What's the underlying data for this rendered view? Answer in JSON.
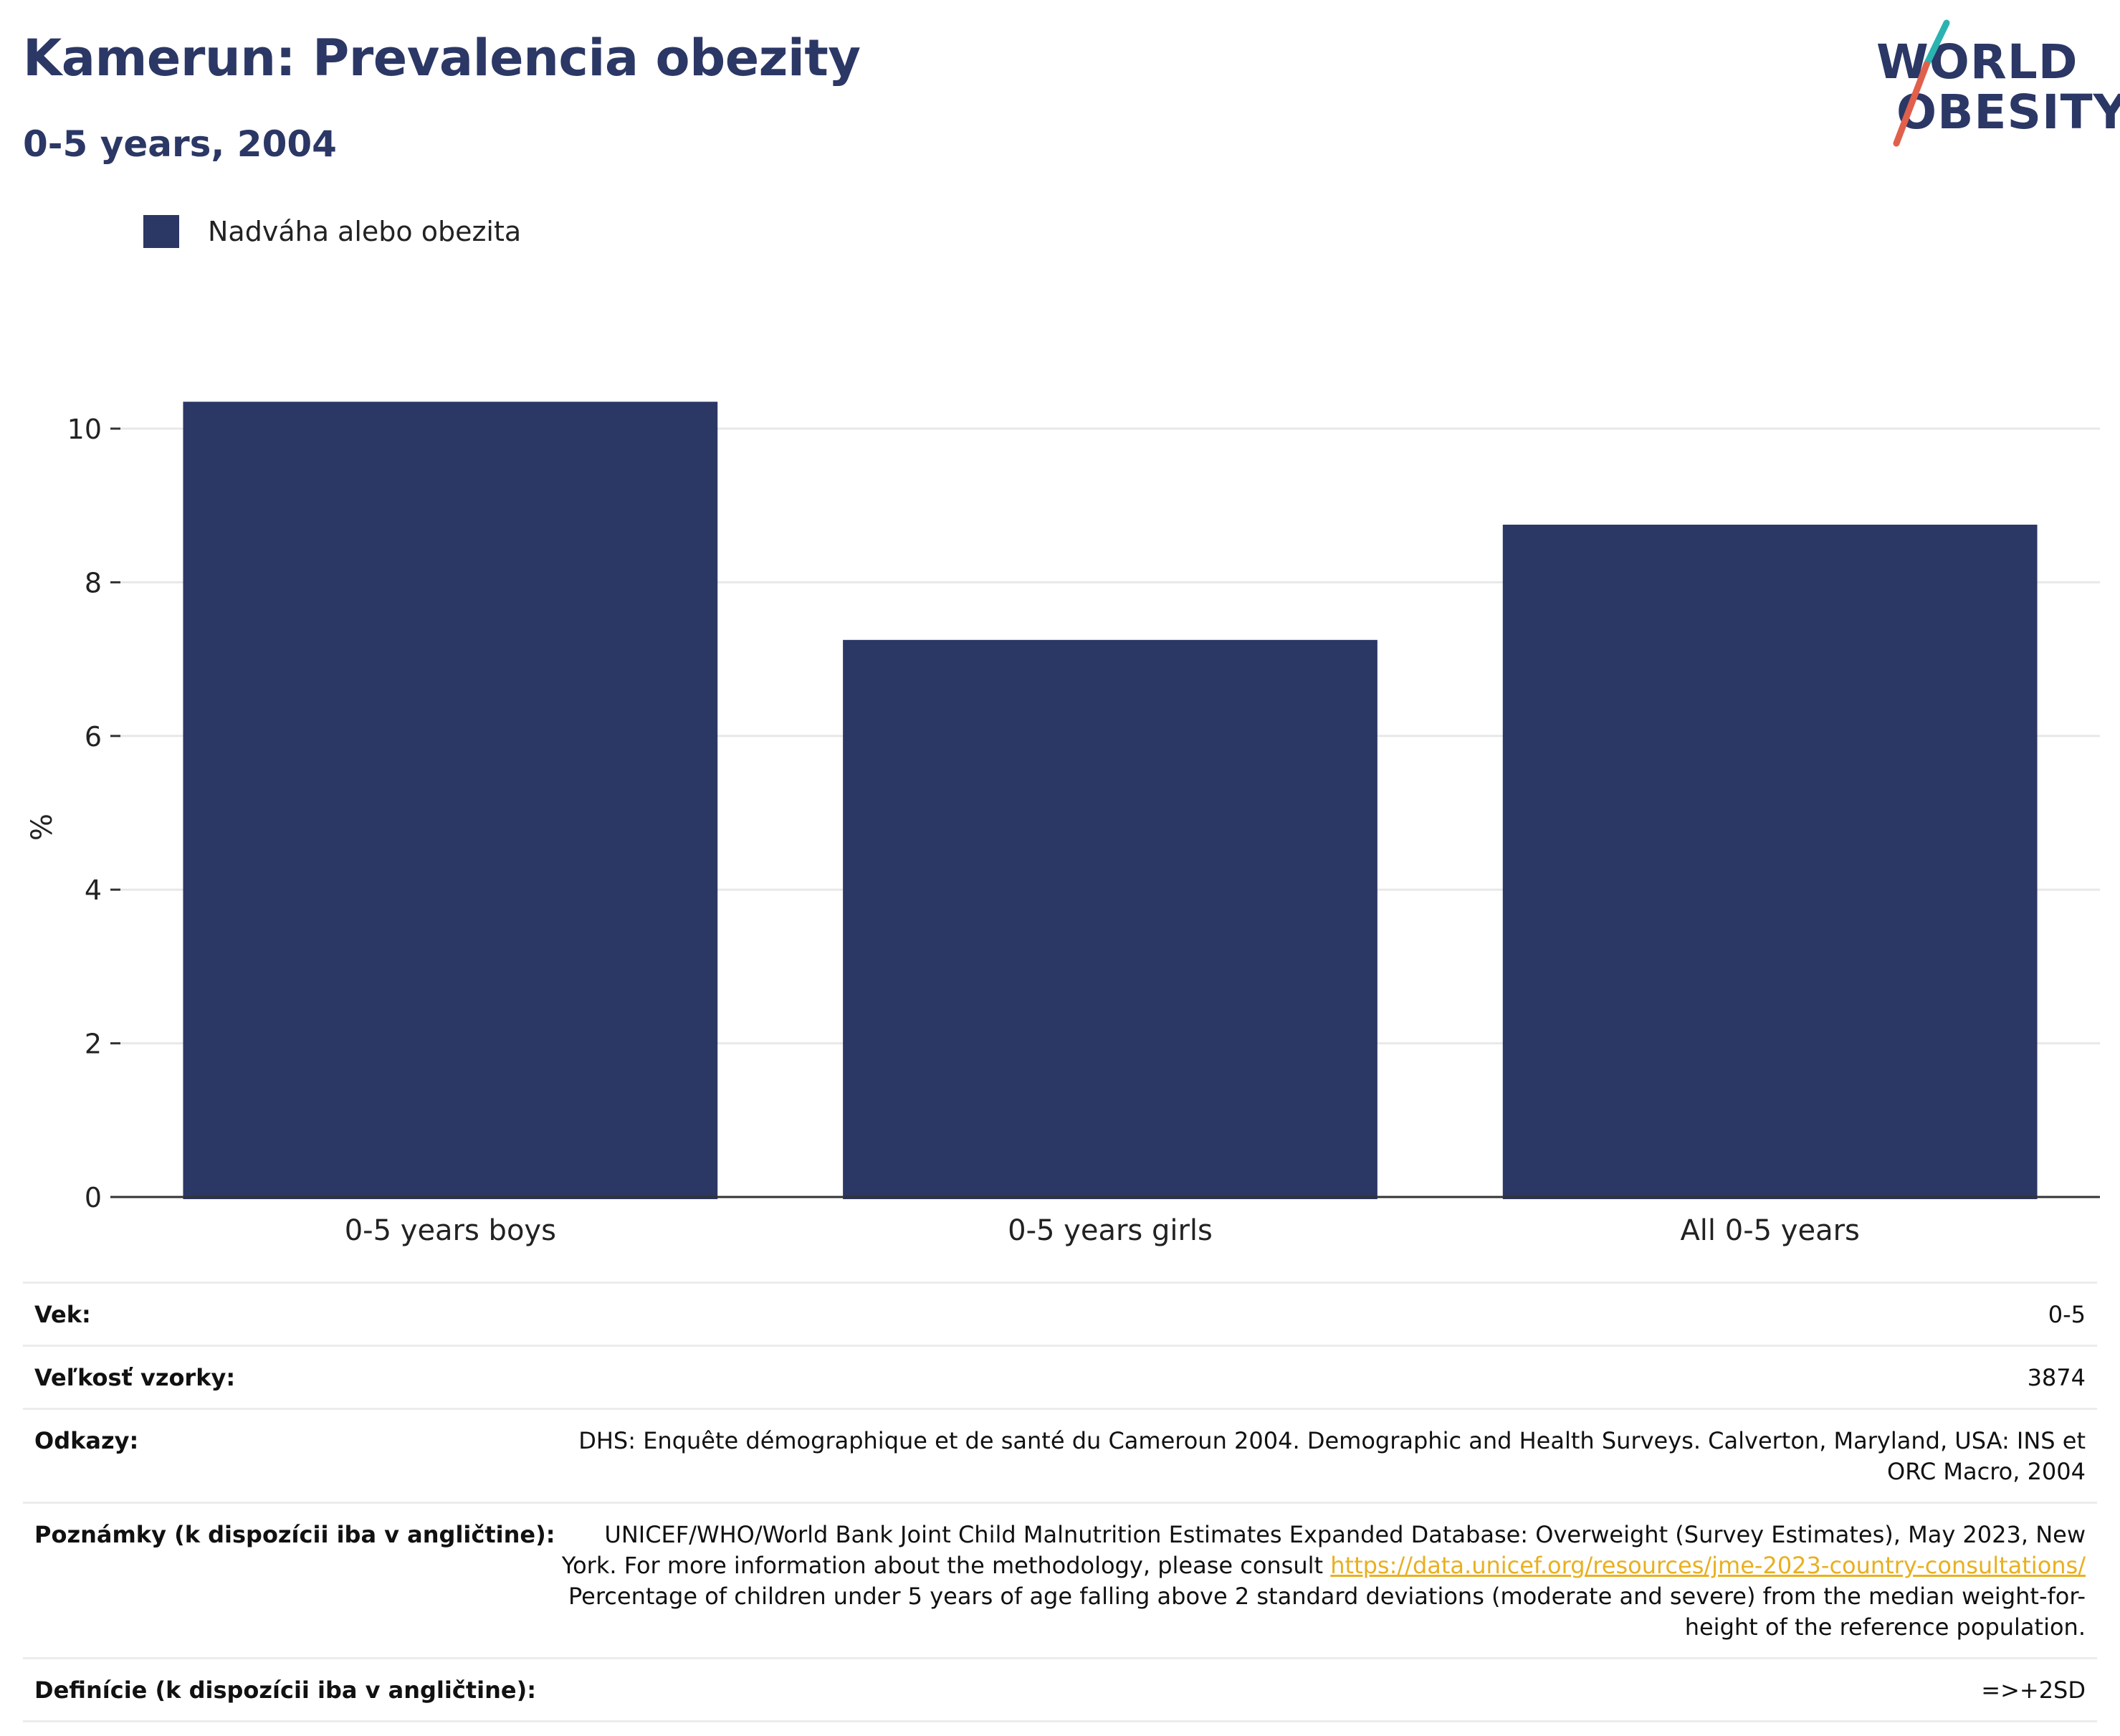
{
  "title": "Kamerun: Prevalencia obezity",
  "subtitle": "0-5 years, 2004",
  "logo": {
    "line1": "WORLD",
    "line2": "OBESITY",
    "accent_teal": "#2bb3b1",
    "accent_red": "#e0604c"
  },
  "colors": {
    "bar": "#2b3765",
    "grid": "#e8e8e8",
    "axis": "#333333",
    "link": "#e8b020"
  },
  "chart_data": {
    "type": "bar",
    "categories": [
      "0-5 years boys",
      "0-5 years girls",
      "All 0-5 years"
    ],
    "series": [
      {
        "name": "Nadváha alebo obezita",
        "values": [
          10.35,
          7.25,
          8.75
        ]
      }
    ],
    "ylabel": "%",
    "ylim": [
      0,
      10.7
    ],
    "yticks": [
      0,
      2,
      4,
      6,
      8,
      10
    ],
    "grid": true,
    "legend": "top-left"
  },
  "meta": {
    "age": {
      "label": "Vek:",
      "value": "0-5"
    },
    "sample": {
      "label": "Veľkosť vzorky:",
      "value": "3874"
    },
    "refs": {
      "label": "Odkazy:",
      "value": "DHS: Enquête démographique et de santé du Cameroun 2004. Demographic and Health Surveys. Calverton, Maryland, USA: INS et ORC Macro, 2004"
    },
    "notes": {
      "label": "Poznámky (k dispozícii iba v angličtine):",
      "text1": "UNICEF/WHO/World Bank Joint Child Malnutrition Estimates Expanded Database: Overweight (Survey Estimates), May 2023, New York. For more information about the methodology, please consult ",
      "link": "https://data.unicef.org/resources/jme-2023-country-consultations/",
      "text2": " Percentage of children under 5 years of age falling above 2 standard deviations (moderate and severe) from the median weight-for-height of the reference population."
    },
    "defs": {
      "label": "Definície (k dispozícii iba v angličtine):",
      "value": "=>+2SD"
    }
  }
}
